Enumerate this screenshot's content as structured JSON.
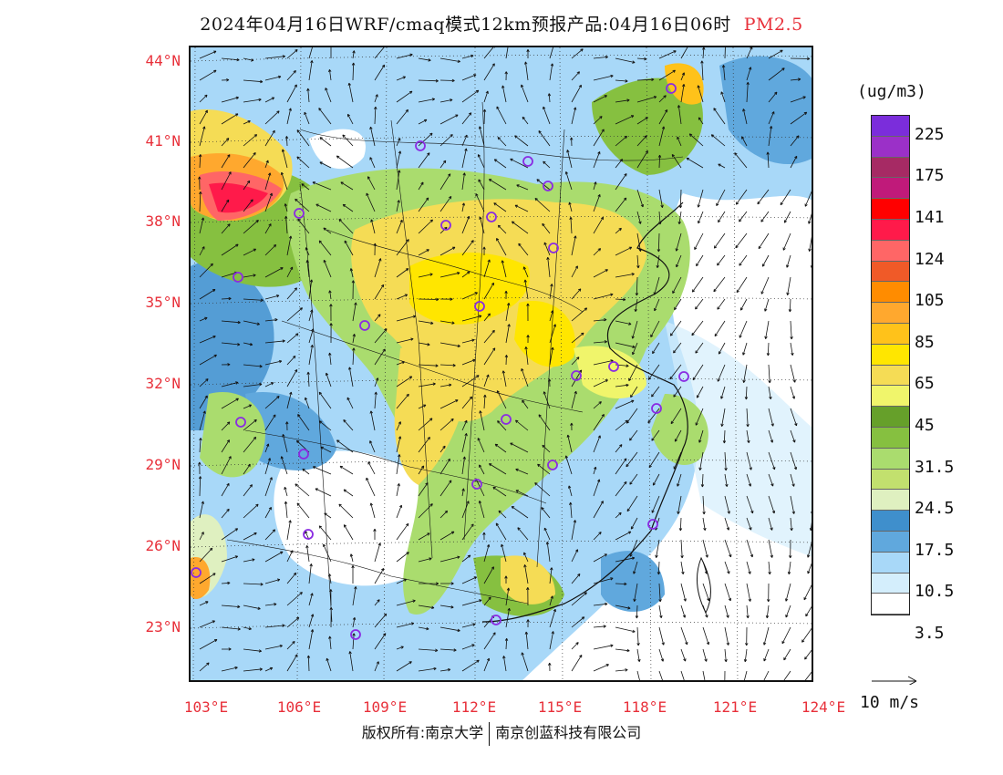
{
  "title": {
    "main": "2024年04月16日WRF/cmaq模式12km预报产品:04月16日06时",
    "pollutant": "PM2.5"
  },
  "map": {
    "lat_labels": [
      "44°N",
      "41°N",
      "38°N",
      "35°N",
      "32°N",
      "29°N",
      "26°N",
      "23°N"
    ],
    "lon_labels": [
      "103°E",
      "106°E",
      "109°E",
      "112°E",
      "115°E",
      "118°E",
      "121°E",
      "124°E"
    ],
    "station_marker_color": "#8a2be2"
  },
  "legend": {
    "unit": "(ug/m3)",
    "colors": [
      "#7b2ddb",
      "#9b30c8",
      "#a62a64",
      "#c01a7a",
      "#ff0000",
      "#ff1a4a",
      "#ff6666",
      "#f05a28",
      "#ff8c00",
      "#ffa82e",
      "#ffc21a",
      "#ffe600",
      "#f5dc55",
      "#f0f56b",
      "#66a02a",
      "#86c040",
      "#aadc6e",
      "#c2e06e",
      "#dff0c0",
      "#3f8fcc",
      "#60a8dd",
      "#a8d8f8",
      "#d4eefc",
      "#ffffff"
    ],
    "labels": [
      "225",
      "175",
      "141",
      "124",
      "105",
      "85",
      "65",
      "45",
      "31.5",
      "24.5",
      "17.5",
      "10.5",
      "3.5"
    ]
  },
  "wind_reference": {
    "label": "10 m/s"
  },
  "footer": {
    "left": "版权所有:南京大学",
    "right": "南京创蓝科技有限公司"
  }
}
